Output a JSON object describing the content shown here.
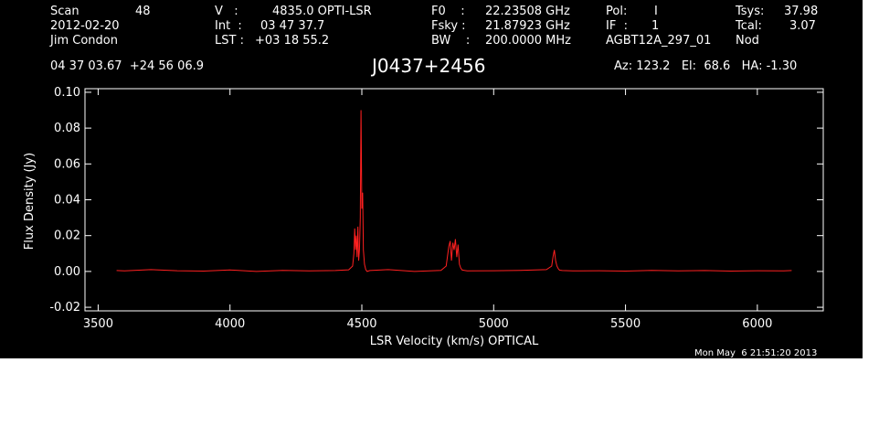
{
  "header": {
    "scan_label": "Scan",
    "scan_value": "48",
    "date": "2012-02-20",
    "observer": "Jim Condon",
    "v_label": "V   :",
    "v_value": "4835.0 OPTI-LSR",
    "int_label": "Int  :",
    "int_value": "03 47 37.7",
    "lst_label": "LST :",
    "lst_value": "+03 18 55.2",
    "f0_label": "F0    :",
    "f0_value": "22.23508 GHz",
    "fsky_label": "Fsky :",
    "fsky_value": "21.87923 GHz",
    "bw_label": "BW    :",
    "bw_value": "200.0000 MHz",
    "pol_label": "Pol:",
    "pol_value": "I",
    "if_label": "IF  :",
    "if_value": "1",
    "project": "AGBT12A_297_01",
    "tsys_label": "Tsys:",
    "tsys_value": "37.98",
    "tcal_label": "Tcal:",
    "tcal_value": "3.07",
    "mode": "Nod",
    "coords": "04 37 03.67  +24 56 06.9",
    "source": "J0437+2456",
    "pointing": "Az: 123.2   El:  68.6   HA: -1.30",
    "timestamp": "Mon May  6 21:51:20 2013"
  },
  "chart_data": {
    "type": "line",
    "xlabel": "LSR Velocity (km/s) OPTICAL",
    "ylabel": "Flux Density (Jy)",
    "xlim": [
      3450,
      6250
    ],
    "ylim": [
      -0.022,
      0.102
    ],
    "x_ticks": [
      3500,
      4000,
      4500,
      5000,
      5500,
      6000
    ],
    "x_tick_labels": [
      "3500",
      "4000",
      "4500",
      "5000",
      "5500",
      "6000"
    ],
    "y_ticks": [
      -0.02,
      0.0,
      0.02,
      0.04,
      0.06,
      0.08,
      0.1
    ],
    "y_tick_labels": [
      "-0.02",
      "0.00",
      "0.02",
      "0.04",
      "0.06",
      "0.08",
      "0.10"
    ],
    "line_color": "#ff2020",
    "axis_color": "#ffffff",
    "background": "#000000",
    "series": [
      {
        "x": [
          3570,
          3600,
          3700,
          3800,
          3900,
          4000,
          4100,
          4200,
          4300,
          4400,
          4450,
          4465,
          4470,
          4473,
          4476,
          4479,
          4482,
          4485,
          4488,
          4491,
          4494,
          4497,
          4500,
          4503,
          4506,
          4510,
          4515,
          4520,
          4530,
          4600,
          4700,
          4800,
          4820,
          4830,
          4835,
          4840,
          4845,
          4850,
          4855,
          4860,
          4865,
          4870,
          4875,
          4880,
          4900,
          5000,
          5100,
          5200,
          5220,
          5225,
          5230,
          5235,
          5240,
          5245,
          5250,
          5260,
          5300,
          5400,
          5500,
          5600,
          5700,
          5800,
          5900,
          6000,
          6100,
          6130
        ],
        "y": [
          0.0005,
          0.0003,
          0.001,
          0.0004,
          0.0002,
          0.0008,
          0.0,
          0.0006,
          0.0003,
          0.0005,
          0.0009,
          0.003,
          0.01,
          0.024,
          0.012,
          0.02,
          0.008,
          0.025,
          0.006,
          0.012,
          0.03,
          0.09,
          0.035,
          0.044,
          0.012,
          0.004,
          0.001,
          0.0,
          0.0005,
          0.001,
          0.0,
          0.0006,
          0.003,
          0.014,
          0.017,
          0.006,
          0.016,
          0.012,
          0.018,
          0.008,
          0.015,
          0.004,
          0.002,
          0.0008,
          0.0003,
          0.0004,
          0.0006,
          0.001,
          0.003,
          0.008,
          0.012,
          0.006,
          0.003,
          0.0015,
          0.0007,
          0.0005,
          0.0003,
          0.0004,
          0.0002,
          0.0006,
          0.0003,
          0.0005,
          0.0002,
          0.0004,
          0.0003,
          0.0005
        ]
      }
    ]
  }
}
